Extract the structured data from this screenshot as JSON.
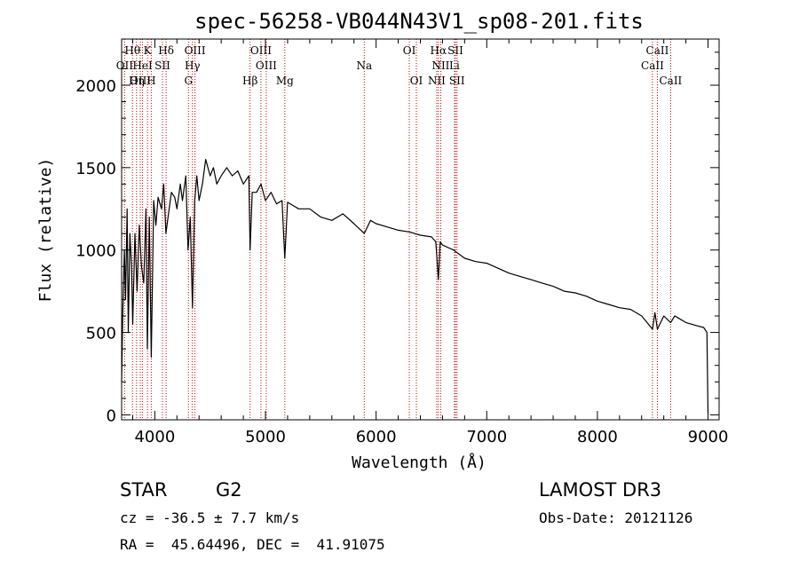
{
  "chart_data": {
    "type": "line",
    "title": "spec-56258-VB044N43V1_sp08-201.fits",
    "xlabel": "Wavelength (Å)",
    "ylabel": "Flux (relative)",
    "xlim": [
      3700,
      9100
    ],
    "ylim": [
      -30,
      2280
    ],
    "xticks": [
      4000,
      5000,
      6000,
      7000,
      8000,
      9000
    ],
    "yticks": [
      0,
      500,
      1000,
      1500,
      2000
    ],
    "series": [
      {
        "name": "spectrum",
        "x": [
          3700,
          3710,
          3725,
          3735,
          3750,
          3760,
          3775,
          3790,
          3800,
          3820,
          3840,
          3860,
          3880,
          3900,
          3920,
          3933,
          3950,
          3968,
          3990,
          4010,
          4030,
          4060,
          4080,
          4100,
          4120,
          4150,
          4180,
          4200,
          4230,
          4250,
          4280,
          4300,
          4320,
          4340,
          4360,
          4380,
          4400,
          4430,
          4460,
          4500,
          4530,
          4560,
          4600,
          4650,
          4700,
          4750,
          4800,
          4850,
          4861,
          4880,
          4920,
          4960,
          5000,
          5050,
          5100,
          5150,
          5175,
          5200,
          5250,
          5300,
          5400,
          5500,
          5600,
          5700,
          5800,
          5893,
          5950,
          6000,
          6100,
          6200,
          6300,
          6400,
          6500,
          6540,
          6563,
          6580,
          6600,
          6700,
          6800,
          6900,
          7000,
          7100,
          7200,
          7300,
          7400,
          7500,
          7600,
          7700,
          7800,
          7900,
          8000,
          8100,
          8200,
          8300,
          8400,
          8498,
          8520,
          8542,
          8600,
          8662,
          8700,
          8800,
          8900,
          8960,
          8990,
          9000
        ],
        "values": [
          200,
          600,
          1000,
          700,
          1250,
          500,
          1100,
          900,
          550,
          1100,
          750,
          1150,
          900,
          800,
          1250,
          400,
          1200,
          350,
          1300,
          1150,
          1320,
          1250,
          1400,
          1100,
          1200,
          1350,
          1320,
          1250,
          1400,
          1300,
          1450,
          1000,
          1200,
          650,
          1300,
          1450,
          1300,
          1400,
          1550,
          1450,
          1500,
          1400,
          1450,
          1500,
          1450,
          1480,
          1400,
          1450,
          1000,
          1350,
          1350,
          1400,
          1300,
          1350,
          1280,
          1300,
          950,
          1290,
          1270,
          1250,
          1250,
          1200,
          1180,
          1220,
          1160,
          1100,
          1180,
          1160,
          1140,
          1120,
          1110,
          1090,
          1080,
          1050,
          820,
          1050,
          1030,
          1000,
          950,
          930,
          920,
          890,
          860,
          840,
          820,
          800,
          780,
          750,
          740,
          720,
          690,
          670,
          650,
          640,
          600,
          520,
          620,
          520,
          600,
          560,
          600,
          560,
          540,
          530,
          500,
          10
        ]
      }
    ],
    "line_markers": [
      {
        "label": "Hθ",
        "x": 3798,
        "row": 0
      },
      {
        "label": "K",
        "x": 3934,
        "row": 0
      },
      {
        "label": "Hδ",
        "x": 4102,
        "row": 0
      },
      {
        "label": "OIII",
        "x": 4363,
        "row": 0
      },
      {
        "label": "OIII",
        "x": 4959,
        "row": 0
      },
      {
        "label": "OI",
        "x": 6300,
        "row": 0
      },
      {
        "label": "Hα",
        "x": 6563,
        "row": 0
      },
      {
        "label": "SII",
        "x": 6717,
        "row": 0
      },
      {
        "label": "CaII",
        "x": 8542,
        "row": 0
      },
      {
        "label": "OII",
        "x": 3727,
        "row": 1
      },
      {
        "label": "HeI",
        "x": 3889,
        "row": 1
      },
      {
        "label": "SII",
        "x": 4069,
        "row": 1
      },
      {
        "label": "Hγ",
        "x": 4340,
        "row": 1
      },
      {
        "label": "OIII",
        "x": 5007,
        "row": 1
      },
      {
        "label": "Na",
        "x": 5893,
        "row": 1
      },
      {
        "label": "NII",
        "x": 6584,
        "row": 1
      },
      {
        "label": "Li",
        "x": 6708,
        "row": 1
      },
      {
        "label": "CaII",
        "x": 8498,
        "row": 1
      },
      {
        "label": "OIII",
        "x": 3869,
        "row": 2
      },
      {
        "label": "Hη",
        "x": 3835,
        "row": 2
      },
      {
        "label": "H",
        "x": 3968,
        "row": 2
      },
      {
        "label": "G",
        "x": 4304,
        "row": 2
      },
      {
        "label": "Hβ",
        "x": 4861,
        "row": 2
      },
      {
        "label": "Mg",
        "x": 5175,
        "row": 2
      },
      {
        "label": "OI",
        "x": 6364,
        "row": 2
      },
      {
        "label": "NII",
        "x": 6548,
        "row": 2
      },
      {
        "label": "SII",
        "x": 6731,
        "row": 2
      },
      {
        "label": "CaII",
        "x": 8662,
        "row": 2
      }
    ]
  },
  "info": {
    "object_class": "STAR",
    "subclass": "G2",
    "survey": "LAMOST DR3",
    "cz": "cz = -36.5 ± 7.7 km/s",
    "obs_date": "Obs-Date: 20121126",
    "coords": "RA =  45.64496, DEC =  41.91075"
  },
  "colors": {
    "spectrum": "#000000",
    "marker_line": "#cc0000",
    "axis": "#000000"
  }
}
